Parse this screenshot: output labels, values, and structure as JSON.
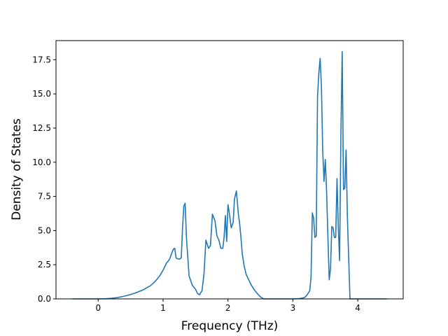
{
  "chart_data": {
    "type": "line",
    "title": "",
    "xlabel": "Frequency (THz)",
    "ylabel": "Density of States",
    "xlim": [
      -0.65,
      4.7
    ],
    "ylim": [
      0.0,
      18.9
    ],
    "xticks": [
      0,
      1,
      2,
      3,
      4
    ],
    "xtick_labels": [
      "0",
      "1",
      "2",
      "3",
      "4"
    ],
    "yticks": [
      0.0,
      2.5,
      5.0,
      7.5,
      10.0,
      12.5,
      15.0,
      17.5
    ],
    "ytick_labels": [
      "0.0",
      "2.5",
      "5.0",
      "7.5",
      "10.0",
      "12.5",
      "15.0",
      "17.5"
    ],
    "grid": false,
    "color": "#1f77b4",
    "series": [
      {
        "x": [
          -0.4,
          -0.2,
          0.0,
          0.1,
          0.2,
          0.3,
          0.4,
          0.5,
          0.6,
          0.7,
          0.8,
          0.85,
          0.9,
          0.95,
          1.0,
          1.05,
          1.1,
          1.13,
          1.16,
          1.18,
          1.2,
          1.22,
          1.25,
          1.28,
          1.3,
          1.32,
          1.34,
          1.36,
          1.4,
          1.45,
          1.5,
          1.53,
          1.56,
          1.6,
          1.63,
          1.66,
          1.7,
          1.73,
          1.76,
          1.8,
          1.83,
          1.86,
          1.89,
          1.92,
          1.94,
          1.96,
          1.98,
          2.0,
          2.02,
          2.05,
          2.08,
          2.1,
          2.13,
          2.16,
          2.18,
          2.2,
          2.22,
          2.25,
          2.28,
          2.32,
          2.36,
          2.4,
          2.45,
          2.5,
          2.55,
          2.6,
          2.8,
          3.0,
          3.1,
          3.18,
          3.22,
          3.26,
          3.28,
          3.3,
          3.32,
          3.34,
          3.36,
          3.38,
          3.4,
          3.42,
          3.44,
          3.46,
          3.48,
          3.5,
          3.52,
          3.54,
          3.56,
          3.58,
          3.6,
          3.62,
          3.64,
          3.66,
          3.68,
          3.7,
          3.72,
          3.74,
          3.76,
          3.78,
          3.8,
          3.82,
          3.84,
          3.86,
          3.88,
          3.9,
          3.92,
          3.94,
          3.96,
          3.98,
          4.0,
          4.02,
          4.04,
          4.1,
          4.2,
          4.3,
          4.45
        ],
        "y": [
          0.0,
          0.0,
          0.0,
          0.01,
          0.04,
          0.1,
          0.2,
          0.32,
          0.48,
          0.68,
          0.95,
          1.15,
          1.4,
          1.7,
          2.1,
          2.6,
          2.9,
          3.3,
          3.65,
          3.7,
          3.0,
          2.95,
          2.9,
          3.0,
          5.2,
          6.8,
          7.0,
          4.5,
          1.7,
          1.0,
          0.7,
          0.4,
          0.3,
          0.6,
          1.8,
          4.3,
          3.7,
          3.9,
          6.2,
          5.7,
          4.6,
          4.3,
          3.7,
          3.7,
          4.5,
          6.1,
          4.2,
          6.9,
          6.3,
          5.2,
          5.6,
          7.3,
          7.9,
          6.2,
          5.5,
          4.5,
          3.3,
          2.4,
          1.8,
          1.4,
          1.0,
          0.7,
          0.4,
          0.15,
          0.0,
          0.0,
          0.0,
          0.0,
          0.02,
          0.1,
          0.3,
          0.6,
          1.6,
          6.3,
          5.9,
          4.5,
          4.6,
          14.8,
          16.5,
          17.6,
          15.5,
          10.8,
          8.6,
          10.2,
          7.8,
          4.5,
          1.4,
          2.2,
          5.3,
          5.2,
          4.5,
          4.5,
          8.8,
          5.3,
          2.8,
          12.0,
          18.1,
          8.0,
          8.1,
          10.9,
          6.0,
          3.0,
          0.0,
          0.0,
          0.0,
          0.0,
          0.0,
          0.0,
          0.0,
          0.0,
          0.0,
          0.0,
          0.0,
          0.0,
          0.0
        ]
      }
    ]
  }
}
